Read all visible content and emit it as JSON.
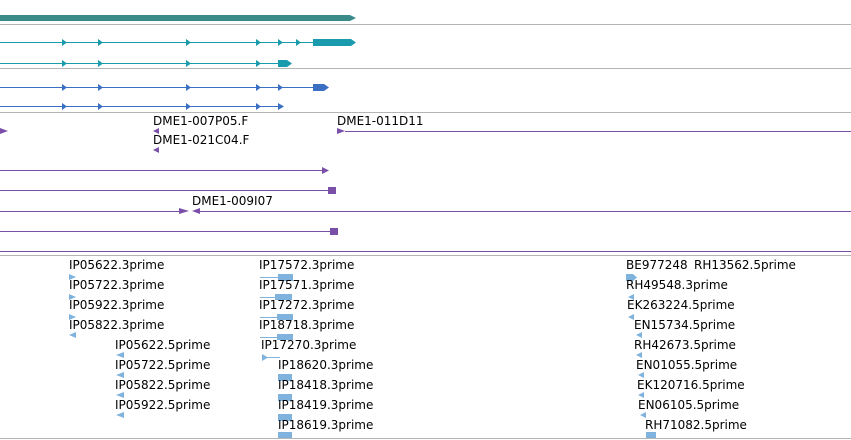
{
  "colors": {
    "separator": "#b4b4b4",
    "gene": "#3a8a8a",
    "transcript_teal": "#1a9aad",
    "transcript_blue": "#3a6fc4",
    "insertion": "#7a4fa8",
    "est": "#7fb3de"
  },
  "insertion_labels": [
    "DME1-007P05.F",
    "DME1-021C04.F",
    "DME1-011D11",
    "DME1-009I07"
  ],
  "est_labels": {
    "group1_3prime": [
      "IP05622.3prime",
      "IP05722.3prime",
      "IP05922.3prime",
      "IP05822.3prime"
    ],
    "group1_5prime": [
      "IP05622.5prime",
      "IP05722.5prime",
      "IP05822.5prime",
      "IP05922.5prime"
    ],
    "group2": [
      "IP17572.3prime",
      "IP17571.3prime",
      "IP17272.3prime",
      "IP18718.3prime",
      "IP17270.3prime",
      "IP18620.3prime",
      "IP18418.3prime",
      "IP18419.3prime",
      "IP18619.3prime"
    ],
    "group3": [
      "BE977248",
      "RH13562.5prime",
      "RH49548.3prime",
      "EK263224.5prime",
      "EN15734.5prime",
      "RH42673.5prime",
      "EN01055.5prime",
      "EK120716.5prime",
      "EN06105.5prime",
      "RH71082.5prime"
    ]
  }
}
